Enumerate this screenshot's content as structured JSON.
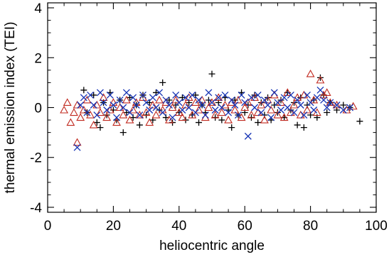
{
  "chart_data": {
    "type": "scatter",
    "title": "",
    "xlabel": "heliocentric angle",
    "ylabel": "thermal emission index (TEI)",
    "xlim": [
      0,
      100
    ],
    "ylim": [
      -4.2,
      4.2
    ],
    "xticks": [
      0,
      20,
      40,
      60,
      80,
      100
    ],
    "yticks": [
      -4,
      -2,
      0,
      2,
      4
    ],
    "xtick_labels": [
      "0",
      "20",
      "40",
      "60",
      "80",
      "100"
    ],
    "ytick_labels": [
      "-4",
      "-2",
      "0",
      "2",
      "4"
    ],
    "grid": false,
    "series": [
      {
        "marker": "plus",
        "color": "#000000",
        "points": [
          [
            11,
            0.7
          ],
          [
            12,
            -0.2
          ],
          [
            14,
            0.5
          ],
          [
            15,
            -0.6
          ],
          [
            16,
            -0.8
          ],
          [
            17,
            0.2
          ],
          [
            18,
            -0.3
          ],
          [
            19,
            0.6
          ],
          [
            20,
            -0.1
          ],
          [
            21,
            -0.5
          ],
          [
            22,
            0.3
          ],
          [
            23,
            -1.0
          ],
          [
            24,
            -0.2
          ],
          [
            25,
            0.4
          ],
          [
            26,
            -0.4
          ],
          [
            27,
            0.1
          ],
          [
            28,
            -0.7
          ],
          [
            29,
            0.5
          ],
          [
            30,
            -0.3
          ],
          [
            31,
            0.2
          ],
          [
            32,
            -0.5
          ],
          [
            33,
            0.6
          ],
          [
            34,
            -0.1
          ],
          [
            35,
            1.0
          ],
          [
            36,
            -0.4
          ],
          [
            37,
            0.3
          ],
          [
            38,
            -0.6
          ],
          [
            39,
            0.1
          ],
          [
            40,
            -0.2
          ],
          [
            41,
            0.4
          ],
          [
            42,
            -0.5
          ],
          [
            43,
            0.2
          ],
          [
            44,
            -0.3
          ],
          [
            45,
            0.5
          ],
          [
            46,
            -0.6
          ],
          [
            47,
            0.1
          ],
          [
            48,
            -0.2
          ],
          [
            49,
            0.3
          ],
          [
            50,
            1.35
          ],
          [
            51,
            -0.4
          ],
          [
            52,
            0.2
          ],
          [
            53,
            -0.5
          ],
          [
            54,
            0.4
          ],
          [
            55,
            -0.1
          ],
          [
            56,
            -0.8
          ],
          [
            57,
            0.3
          ],
          [
            58,
            -0.3
          ],
          [
            59,
            0.6
          ],
          [
            60,
            -0.2
          ],
          [
            61,
            0.1
          ],
          [
            62,
            -0.4
          ],
          [
            63,
            0.5
          ],
          [
            64,
            -0.6
          ],
          [
            65,
            0.2
          ],
          [
            66,
            -0.3
          ],
          [
            67,
            0.4
          ],
          [
            68,
            -0.5
          ],
          [
            69,
            0.1
          ],
          [
            70,
            -0.2
          ],
          [
            71,
            0.3
          ],
          [
            72,
            -0.4
          ],
          [
            73,
            0.6
          ],
          [
            74,
            -0.1
          ],
          [
            75,
            0.2
          ],
          [
            76,
            -0.7
          ],
          [
            77,
            0.4
          ],
          [
            78,
            -0.8
          ],
          [
            79,
            0.1
          ],
          [
            80,
            -0.3
          ],
          [
            81,
            0.3
          ],
          [
            82,
            -0.4
          ],
          [
            83,
            1.2
          ],
          [
            84,
            0.5
          ],
          [
            85,
            -0.2
          ],
          [
            86,
            0.2
          ],
          [
            88,
            -0.1
          ],
          [
            90,
            0.1
          ],
          [
            92,
            0.0
          ],
          [
            95,
            -0.55
          ]
        ]
      },
      {
        "marker": "triangle",
        "color": "#c0281e",
        "points": [
          [
            5,
            -0.1
          ],
          [
            6,
            0.2
          ],
          [
            7,
            -0.6
          ],
          [
            8,
            -0.2
          ],
          [
            9,
            -1.4
          ],
          [
            9,
            0.1
          ],
          [
            10,
            -0.4
          ],
          [
            11,
            -0.1
          ],
          [
            12,
            0.3
          ],
          [
            13,
            -0.3
          ],
          [
            14,
            -0.7
          ],
          [
            15,
            0.1
          ],
          [
            16,
            -0.2
          ],
          [
            17,
            0.4
          ],
          [
            18,
            -0.4
          ],
          [
            19,
            -0.1
          ],
          [
            20,
            0.2
          ],
          [
            21,
            -0.6
          ],
          [
            22,
            0.0
          ],
          [
            23,
            -0.3
          ],
          [
            24,
            0.3
          ],
          [
            25,
            -0.5
          ],
          [
            26,
            -0.1
          ],
          [
            27,
            0.2
          ],
          [
            28,
            -0.3
          ],
          [
            29,
            0.4
          ],
          [
            30,
            -0.2
          ],
          [
            31,
            -0.6
          ],
          [
            32,
            0.1
          ],
          [
            33,
            -0.3
          ],
          [
            34,
            0.3
          ],
          [
            35,
            -0.1
          ],
          [
            36,
            0.2
          ],
          [
            37,
            -0.5
          ],
          [
            38,
            0.0
          ],
          [
            39,
            0.3
          ],
          [
            40,
            -0.2
          ],
          [
            41,
            -0.4
          ],
          [
            42,
            0.1
          ],
          [
            43,
            0.4
          ],
          [
            44,
            -0.3
          ],
          [
            45,
            0.2
          ],
          [
            46,
            -0.1
          ],
          [
            47,
            0.3
          ],
          [
            48,
            -0.4
          ],
          [
            49,
            0.0
          ],
          [
            50,
            0.2
          ],
          [
            51,
            -0.3
          ],
          [
            52,
            0.4
          ],
          [
            53,
            -0.2
          ],
          [
            54,
            0.1
          ],
          [
            55,
            -0.5
          ],
          [
            56,
            0.2
          ],
          [
            57,
            -0.1
          ],
          [
            58,
            0.3
          ],
          [
            59,
            -0.4
          ],
          [
            60,
            0.0
          ],
          [
            61,
            0.2
          ],
          [
            62,
            -0.3
          ],
          [
            63,
            0.4
          ],
          [
            64,
            -0.2
          ],
          [
            65,
            0.1
          ],
          [
            66,
            -0.5
          ],
          [
            67,
            0.3
          ],
          [
            68,
            -0.1
          ],
          [
            69,
            0.5
          ],
          [
            70,
            -0.3
          ],
          [
            71,
            0.2
          ],
          [
            72,
            -0.4
          ],
          [
            73,
            0.6
          ],
          [
            74,
            -0.2
          ],
          [
            75,
            0.1
          ],
          [
            76,
            0.4
          ],
          [
            77,
            -0.3
          ],
          [
            78,
            0.5
          ],
          [
            79,
            -0.1
          ],
          [
            80,
            1.35
          ],
          [
            81,
            0.3
          ],
          [
            82,
            -0.2
          ],
          [
            83,
            1.1
          ],
          [
            84,
            0.5
          ],
          [
            85,
            0.6
          ],
          [
            86,
            0.2
          ],
          [
            88,
            0.1
          ],
          [
            91,
            -0.1
          ],
          [
            93,
            0.05
          ]
        ]
      },
      {
        "marker": "x",
        "color": "#1432b4",
        "points": [
          [
            9,
            -1.6
          ],
          [
            10,
            0.1
          ],
          [
            11,
            0.4
          ],
          [
            12,
            -0.2
          ],
          [
            13,
            0.5
          ],
          [
            14,
            0.1
          ],
          [
            15,
            -0.3
          ],
          [
            16,
            0.6
          ],
          [
            17,
            0.2
          ],
          [
            18,
            -0.1
          ],
          [
            19,
            0.5
          ],
          [
            20,
            0.1
          ],
          [
            21,
            -0.4
          ],
          [
            22,
            0.3
          ],
          [
            23,
            0.0
          ],
          [
            24,
            0.6
          ],
          [
            25,
            -0.2
          ],
          [
            26,
            0.4
          ],
          [
            27,
            0.1
          ],
          [
            28,
            -0.3
          ],
          [
            29,
            0.5
          ],
          [
            30,
            0.2
          ],
          [
            31,
            -0.1
          ],
          [
            32,
            0.4
          ],
          [
            33,
            0.0
          ],
          [
            34,
            0.6
          ],
          [
            35,
            -0.2
          ],
          [
            36,
            0.3
          ],
          [
            37,
            0.1
          ],
          [
            38,
            -0.4
          ],
          [
            39,
            0.5
          ],
          [
            40,
            0.2
          ],
          [
            41,
            -0.1
          ],
          [
            42,
            0.4
          ],
          [
            43,
            0.0
          ],
          [
            44,
            0.5
          ],
          [
            45,
            -0.2
          ],
          [
            46,
            0.3
          ],
          [
            47,
            0.1
          ],
          [
            48,
            -0.3
          ],
          [
            49,
            0.6
          ],
          [
            50,
            0.2
          ],
          [
            51,
            -0.1
          ],
          [
            52,
            0.4
          ],
          [
            53,
            0.0
          ],
          [
            54,
            0.5
          ],
          [
            55,
            -0.2
          ],
          [
            56,
            0.3
          ],
          [
            57,
            0.1
          ],
          [
            58,
            -0.3
          ],
          [
            59,
            0.5
          ],
          [
            60,
            0.2
          ],
          [
            61,
            -1.15
          ],
          [
            62,
            0.4
          ],
          [
            63,
            0.0
          ],
          [
            64,
            0.5
          ],
          [
            65,
            -0.2
          ],
          [
            66,
            0.3
          ],
          [
            67,
            0.1
          ],
          [
            68,
            -0.4
          ],
          [
            69,
            0.6
          ],
          [
            70,
            0.2
          ],
          [
            71,
            -0.1
          ],
          [
            72,
            0.4
          ],
          [
            73,
            0.0
          ],
          [
            74,
            0.5
          ],
          [
            75,
            -0.2
          ],
          [
            76,
            0.3
          ],
          [
            77,
            0.1
          ],
          [
            78,
            -0.3
          ],
          [
            79,
            0.5
          ],
          [
            80,
            0.2
          ],
          [
            81,
            -0.1
          ],
          [
            82,
            0.4
          ],
          [
            83,
            0.7
          ],
          [
            84,
            0.3
          ],
          [
            85,
            0.0
          ],
          [
            86,
            0.2
          ],
          [
            88,
            0.1
          ],
          [
            90,
            -0.1
          ],
          [
            92,
            0.0
          ]
        ]
      }
    ]
  }
}
